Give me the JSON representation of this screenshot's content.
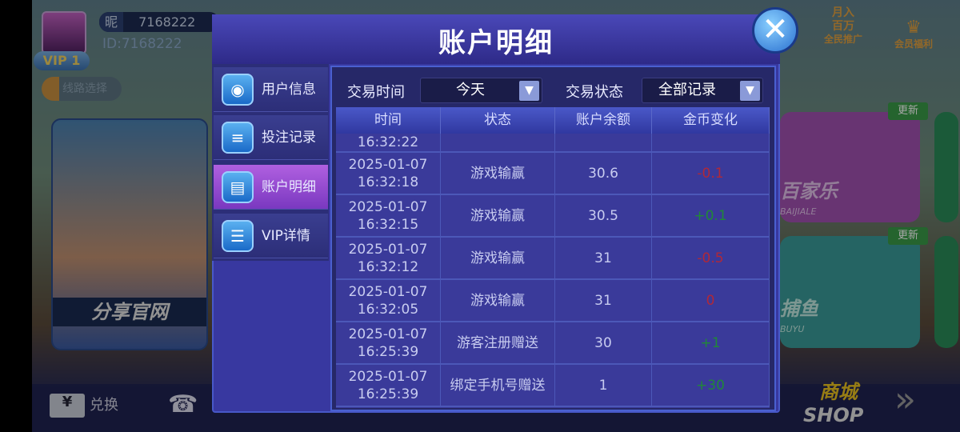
{
  "profile": {
    "nickname_label": "昵",
    "nickname": "7168222",
    "id": "ID:7168222",
    "vip": "VIP 1",
    "line_select": "线路选择"
  },
  "share_label": "分享官网",
  "bottom": {
    "exchange": "兑换"
  },
  "top_right": {
    "promo_line1": "月入",
    "promo_line2": "百万",
    "promo": "全民推广",
    "member": "会员福利"
  },
  "games": [
    {
      "name": "百家乐",
      "badge": "更新",
      "sub": "BAIJIALE"
    },
    {
      "name": "捕鱼",
      "badge": "更新",
      "sub": "BUYU"
    }
  ],
  "shop": {
    "cn": "商城",
    "en": "SHOP"
  },
  "dialog": {
    "title": "账户明细",
    "tabs": [
      {
        "label": "用户信息",
        "icon": "user-icon"
      },
      {
        "label": "投注记录",
        "icon": "list-icon"
      },
      {
        "label": "账户明细",
        "icon": "ledger-icon",
        "active": true
      },
      {
        "label": "VIP详情",
        "icon": "menu-list-icon"
      }
    ],
    "filters": {
      "time_label": "交易时间",
      "time_value": "今天",
      "status_label": "交易状态",
      "status_value": "全部记录"
    },
    "columns": [
      "时间",
      "状态",
      "账户余额",
      "金币变化"
    ],
    "partial_row_time": "16:32:22",
    "rows": [
      {
        "date": "2025-01-07",
        "time": "16:32:18",
        "status": "游戏输赢",
        "balance": "30.6",
        "change": "-0.1"
      },
      {
        "date": "2025-01-07",
        "time": "16:32:15",
        "status": "游戏输赢",
        "balance": "30.5",
        "change": "+0.1"
      },
      {
        "date": "2025-01-07",
        "time": "16:32:12",
        "status": "游戏输赢",
        "balance": "31",
        "change": "-0.5"
      },
      {
        "date": "2025-01-07",
        "time": "16:32:05",
        "status": "游戏输赢",
        "balance": "31",
        "change": "0"
      },
      {
        "date": "2025-01-07",
        "time": "16:25:39",
        "status": "游客注册赠送",
        "balance": "30",
        "change": "+1"
      },
      {
        "date": "2025-01-07",
        "time": "16:25:39",
        "status": "绑定手机号赠送",
        "balance": "1",
        "change": "+30"
      }
    ]
  },
  "colors": {
    "negative": "#b02838",
    "positive": "#208838",
    "active_tab": "#9a50d8"
  }
}
